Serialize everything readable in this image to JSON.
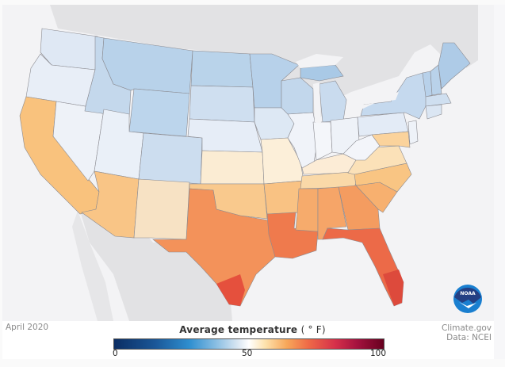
{
  "map": {
    "title": "Average temperature",
    "unit": "( ° F)",
    "date": "April 2020",
    "credit_line1": "Climate.gov",
    "credit_line2": "Data: NCEI",
    "logo_text": "NOAA",
    "colorbar": {
      "min_label": "0",
      "mid_label": "50",
      "max_label": "100",
      "min": 0,
      "max": 100,
      "colors": [
        "#0b2d63",
        "#2f8fd0",
        "#dbe7f3",
        "#ffffff",
        "#f7a75a",
        "#ef6a47",
        "#67001f"
      ]
    },
    "colors": {
      "ocean": "#f3f3f5",
      "land_outside": "#e2e2e4",
      "state_border": "#8a8a90"
    }
  }
}
